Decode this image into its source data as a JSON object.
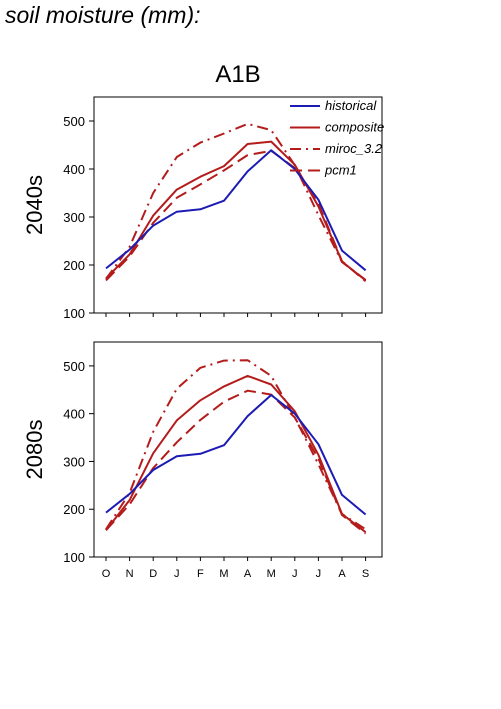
{
  "figure_title": "soil moisture (mm):",
  "scenario_title": "A1B",
  "colors": {
    "historical": "#1c1cb4",
    "projection": "#b41c1c"
  },
  "legend": [
    {
      "label": "historical",
      "style": "solid",
      "color": "#1c1cb4"
    },
    {
      "label": "composite",
      "style": "solid",
      "color": "#b41c1c"
    },
    {
      "label": "miroc_3.2",
      "style": "dashdot",
      "color": "#b41c1c"
    },
    {
      "label": "pcm1",
      "style": "dashed",
      "color": "#b41c1c"
    }
  ],
  "chart_data": [
    {
      "type": "line",
      "row_label": "2040s",
      "categories": [
        "O",
        "N",
        "D",
        "J",
        "F",
        "M",
        "A",
        "M",
        "J",
        "J",
        "A",
        "S"
      ],
      "ylim": [
        100,
        550
      ],
      "yticks": [
        100,
        200,
        300,
        400,
        500
      ],
      "legend_position": "top-right",
      "series": [
        {
          "name": "historical",
          "style": "solid",
          "color": "#1c1cb4",
          "values": [
            193,
            232,
            282,
            311,
            316,
            334,
            395,
            439,
            400,
            336,
            230,
            189
          ]
        },
        {
          "name": "composite",
          "style": "solid",
          "color": "#b41c1c",
          "values": [
            172,
            222,
            303,
            357,
            384,
            406,
            452,
            457,
            409,
            322,
            207,
            168
          ]
        },
        {
          "name": "miroc_3.2",
          "style": "dashdot",
          "color": "#b41c1c",
          "values": [
            171,
            238,
            350,
            425,
            455,
            474,
            494,
            481,
            408,
            304,
            206,
            169
          ]
        },
        {
          "name": "pcm1",
          "style": "dashed",
          "color": "#b41c1c",
          "values": [
            168,
            218,
            288,
            340,
            368,
            397,
            429,
            438,
            402,
            328,
            208,
            166
          ]
        }
      ]
    },
    {
      "type": "line",
      "row_label": "2080s",
      "categories": [
        "O",
        "N",
        "D",
        "J",
        "F",
        "M",
        "A",
        "M",
        "J",
        "J",
        "A",
        "S"
      ],
      "ylim": [
        100,
        550
      ],
      "yticks": [
        100,
        200,
        300,
        400,
        500
      ],
      "legend_position": "none",
      "series": [
        {
          "name": "historical",
          "style": "solid",
          "color": "#1c1cb4",
          "values": [
            193,
            232,
            282,
            311,
            316,
            334,
            395,
            439,
            400,
            336,
            230,
            189
          ]
        },
        {
          "name": "composite",
          "style": "solid",
          "color": "#b41c1c",
          "values": [
            156,
            219,
            317,
            386,
            428,
            457,
            479,
            461,
            405,
            314,
            190,
            152
          ]
        },
        {
          "name": "miroc_3.2",
          "style": "dashdot",
          "color": "#b41c1c",
          "values": [
            158,
            234,
            362,
            452,
            496,
            511,
            512,
            479,
            392,
            294,
            190,
            158
          ]
        },
        {
          "name": "pcm1",
          "style": "dashed",
          "color": "#b41c1c",
          "values": [
            156,
            210,
            286,
            340,
            387,
            425,
            448,
            440,
            392,
            306,
            188,
            149
          ]
        }
      ]
    }
  ]
}
